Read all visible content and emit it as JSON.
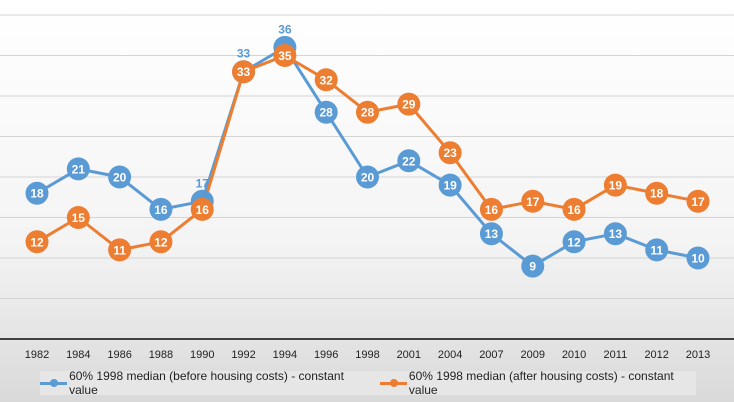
{
  "chart_data": {
    "type": "line",
    "title": "",
    "xlabel": "",
    "ylabel": "",
    "ylim": [
      0,
      40
    ],
    "y_gridline_step": 5,
    "y_tick_labels_shown": false,
    "grid": true,
    "legend_position": "bottom",
    "data_labels": true,
    "categories": [
      "1982",
      "1984",
      "1986",
      "1988",
      "1990",
      "1992",
      "1994",
      "1996",
      "1998",
      "2001",
      "2004",
      "2007",
      "2009",
      "2010",
      "2011",
      "2012",
      "2013"
    ],
    "series": [
      {
        "name": "60%  1998 median (before housing costs) - constant value",
        "color": "#5b9bd5",
        "values": [
          18,
          21,
          20,
          16,
          17,
          33,
          36,
          28,
          20,
          22,
          19,
          13,
          9,
          12,
          13,
          11,
          10
        ]
      },
      {
        "name": "60%  1998 median (after housing costs) - constant  value",
        "color": "#ed7d31",
        "values": [
          12,
          15,
          11,
          12,
          16,
          33,
          35,
          32,
          28,
          29,
          23,
          16,
          17,
          16,
          19,
          18,
          17
        ]
      }
    ]
  }
}
